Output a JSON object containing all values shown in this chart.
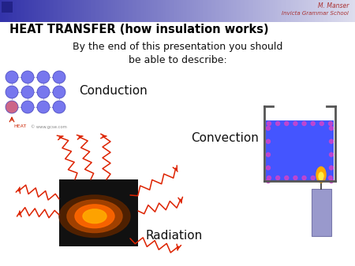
{
  "title": "HEAT TRANSFER (how insulation works)",
  "subtitle": "By the end of this presentation you should\nbe able to describe:",
  "author": "M. Manser",
  "school": "Invicta Grammar School",
  "labels": [
    "Conduction",
    "Convection",
    "Radiation"
  ],
  "background_color": "#ffffff",
  "header_gradient_left": "#3333aa",
  "header_gradient_right": "#ddddee",
  "title_color": "#000000",
  "subtitle_color": "#111111",
  "author_color": "#aa3333",
  "school_color": "#aa3333",
  "conduction_molecule_color": "#7777ee",
  "conduction_molecule_edge": "#4444bb",
  "conduction_hot_color": "#cc6688",
  "convection_water_color": "#4455ff",
  "convection_border_color": "#cc44cc",
  "convection_beaker_edge": "#555555",
  "radiation_arrow_color": "#dd2200",
  "candle_body_color": "#9999cc",
  "candle_flame_color": "#ffaa00",
  "candle_flame_inner": "#ffee44"
}
